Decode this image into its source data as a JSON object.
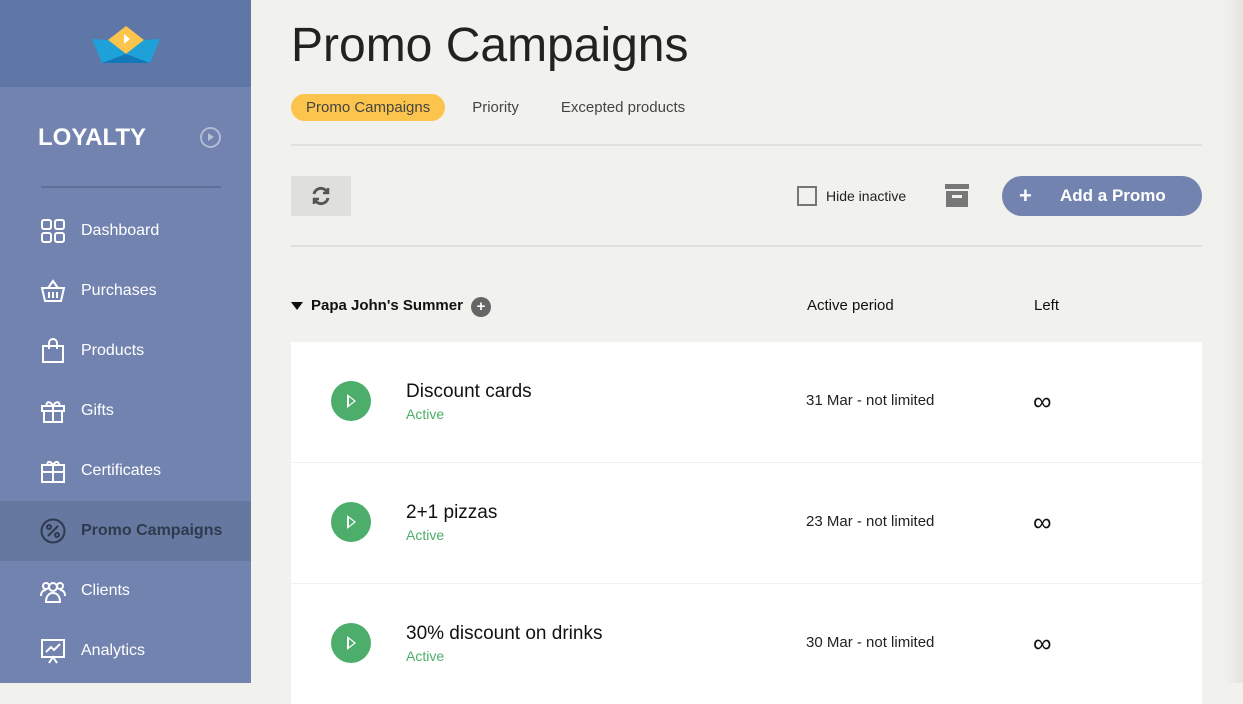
{
  "sidebar": {
    "brand": "LOYALTY",
    "items": [
      {
        "label": "Dashboard",
        "icon": "grid-icon"
      },
      {
        "label": "Purchases",
        "icon": "basket-icon"
      },
      {
        "label": "Products",
        "icon": "shopping-bag-icon"
      },
      {
        "label": "Gifts",
        "icon": "gift-icon"
      },
      {
        "label": "Certificates",
        "icon": "certificate-icon"
      },
      {
        "label": "Promo Campaigns",
        "icon": "percent-icon",
        "active": true
      },
      {
        "label": "Clients",
        "icon": "users-icon"
      },
      {
        "label": "Analytics",
        "icon": "chart-board-icon"
      }
    ]
  },
  "header": {
    "title": "Promo Campaigns",
    "tabs": [
      {
        "label": "Promo Campaigns"
      },
      {
        "label": "Priority"
      },
      {
        "label": "Excepted products"
      }
    ]
  },
  "toolbar": {
    "hide_inactive": "Hide inactive",
    "add_plus": "+",
    "add_label": "Add a Promo"
  },
  "group": {
    "name": "Papa John's Summer",
    "plus": "+",
    "col_period": "Active period",
    "col_left": "Left"
  },
  "rows": [
    {
      "name": "Discount cards",
      "status": "Active",
      "period": "31 Mar - not limited",
      "left": "∞"
    },
    {
      "name": "2+1 pizzas",
      "status": "Active",
      "period": "23 Mar - not limited",
      "left": "∞"
    },
    {
      "name": "30% discount on drinks",
      "status": "Active",
      "period": "30 Mar - not limited",
      "left": "∞"
    }
  ],
  "colors": {
    "sidebar": "#7383b0",
    "accent_tab": "#fbc54d",
    "active_green": "#4cae6a"
  }
}
